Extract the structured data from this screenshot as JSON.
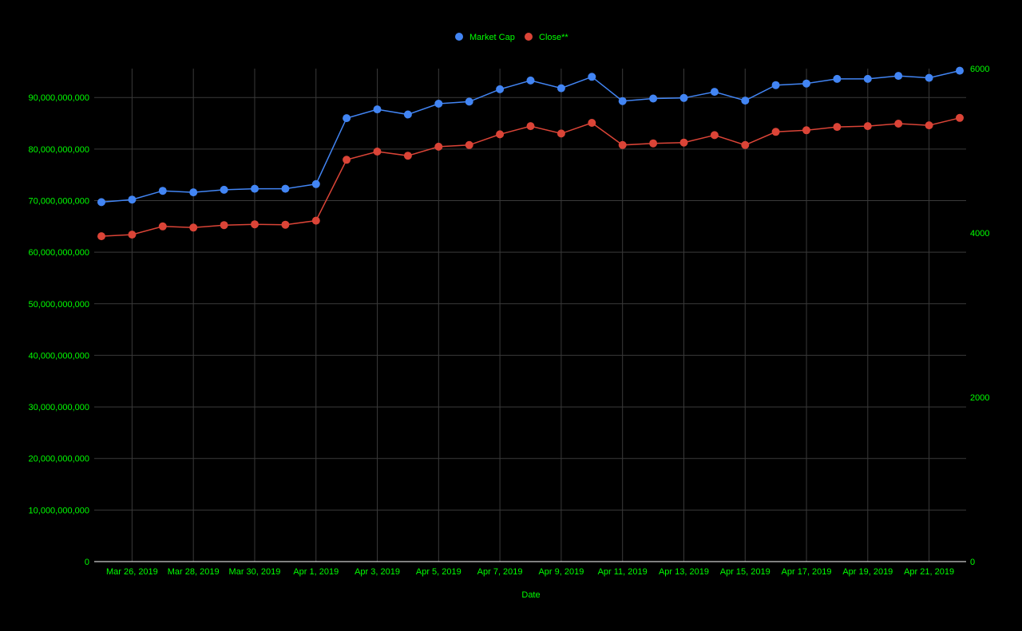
{
  "chart_data": {
    "type": "line",
    "title": "",
    "xlabel": "Date",
    "ylabel": "",
    "y2label": "",
    "legend_position": "top",
    "grid": true,
    "colors": {
      "background": "#000000",
      "text": "#00ff00",
      "grid": "#3a3a3a",
      "axis": "#ffffff",
      "market_cap": "#4285f4",
      "close": "#db4437"
    },
    "x": [
      "2019-03-25",
      "2019-03-26",
      "2019-03-27",
      "2019-03-28",
      "2019-03-29",
      "2019-03-30",
      "2019-03-31",
      "2019-04-01",
      "2019-04-02",
      "2019-04-03",
      "2019-04-04",
      "2019-04-05",
      "2019-04-06",
      "2019-04-07",
      "2019-04-08",
      "2019-04-09",
      "2019-04-10",
      "2019-04-11",
      "2019-04-12",
      "2019-04-13",
      "2019-04-14",
      "2019-04-15",
      "2019-04-16",
      "2019-04-17",
      "2019-04-18",
      "2019-04-19",
      "2019-04-20",
      "2019-04-21",
      "2019-04-22"
    ],
    "x_tick_labels": [
      "Mar 26, 2019",
      "Mar 28, 2019",
      "Mar 30, 2019",
      "Apr 1, 2019",
      "Apr 3, 2019",
      "Apr 5, 2019",
      "Apr 7, 2019",
      "Apr 9, 2019",
      "Apr 11, 2019",
      "Apr 13, 2019",
      "Apr 15, 2019",
      "Apr 17, 2019",
      "Apr 19, 2019",
      "Apr 21, 2019"
    ],
    "x_tick_dates": [
      "2019-03-26",
      "2019-03-28",
      "2019-03-30",
      "2019-04-01",
      "2019-04-03",
      "2019-04-05",
      "2019-04-07",
      "2019-04-09",
      "2019-04-11",
      "2019-04-13",
      "2019-04-15",
      "2019-04-17",
      "2019-04-19",
      "2019-04-21"
    ],
    "y_left": {
      "ylim": [
        0,
        95600000000
      ],
      "ticks": [
        0,
        10000000000,
        20000000000,
        30000000000,
        40000000000,
        50000000000,
        60000000000,
        70000000000,
        80000000000,
        90000000000
      ],
      "tick_labels": [
        "0",
        "10,000,000,000",
        "20,000,000,000",
        "30,000,000,000",
        "40,000,000,000",
        "50,000,000,000",
        "60,000,000,000",
        "70,000,000,000",
        "80,000,000,000",
        "90,000,000,000"
      ]
    },
    "y_right": {
      "ylim": [
        0,
        6000
      ],
      "ticks": [
        0,
        2000,
        4000,
        6000
      ],
      "tick_labels": [
        "0",
        "2000",
        "4000",
        "6000"
      ]
    },
    "series": [
      {
        "name": "Market Cap",
        "axis": "left",
        "values": [
          69700000000,
          70200000000,
          71900000000,
          71600000000,
          72100000000,
          72300000000,
          72300000000,
          73200000000,
          86000000000,
          87700000000,
          86700000000,
          88800000000,
          89200000000,
          91600000000,
          93300000000,
          91800000000,
          94000000000,
          89300000000,
          89800000000,
          89900000000,
          91100000000,
          89400000000,
          92400000000,
          92700000000,
          93600000000,
          93600000000,
          94200000000,
          93800000000,
          95200000000
        ]
      },
      {
        "name": "Close**",
        "axis": "right",
        "values": [
          3960,
          3980,
          4080,
          4065,
          4095,
          4105,
          4100,
          4150,
          4890,
          4990,
          4940,
          5050,
          5070,
          5200,
          5300,
          5210,
          5340,
          5070,
          5090,
          5100,
          5190,
          5070,
          5230,
          5250,
          5290,
          5300,
          5330,
          5310,
          5400
        ]
      }
    ]
  }
}
